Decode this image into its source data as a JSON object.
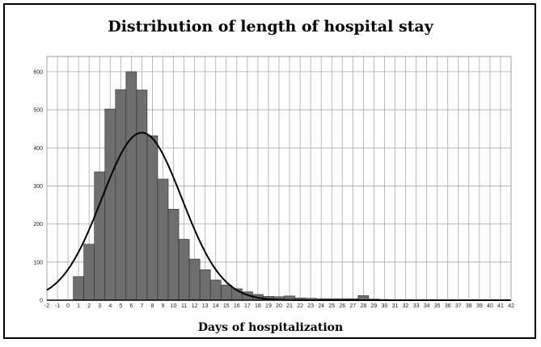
{
  "chart_data": {
    "type": "bar",
    "title": "Distribution of length of hospital stay",
    "xlabel": "Days of hospitalization",
    "ylabel": "",
    "xlim": [
      -2,
      42
    ],
    "ylim": [
      0,
      640
    ],
    "x_ticks": [
      -2,
      -1,
      0,
      1,
      2,
      3,
      4,
      5,
      6,
      7,
      8,
      9,
      10,
      11,
      12,
      13,
      14,
      15,
      16,
      17,
      18,
      19,
      20,
      21,
      22,
      23,
      24,
      25,
      26,
      27,
      28,
      29,
      30,
      31,
      32,
      33,
      34,
      35,
      36,
      37,
      38,
      39,
      40,
      41,
      42
    ],
    "y_ticks": [
      0,
      100,
      200,
      300,
      400,
      500,
      600
    ],
    "grid": true,
    "bar_color": "#6e6e6e",
    "series": [
      {
        "type": "bar",
        "x": [
          1,
          2,
          3,
          4,
          5,
          6,
          7,
          8,
          9,
          10,
          11,
          12,
          13,
          14,
          15,
          16,
          17,
          18,
          19,
          20,
          21,
          22,
          23,
          24,
          25,
          26,
          27,
          28,
          29,
          30
        ],
        "values": [
          62,
          147,
          337,
          502,
          553,
          600,
          552,
          432,
          318,
          239,
          160,
          108,
          80,
          53,
          40,
          30,
          22,
          15,
          10,
          9,
          11,
          6,
          5,
          4,
          4,
          4,
          4,
          12,
          3,
          2
        ]
      },
      {
        "type": "line",
        "label_shown": false,
        "normal_curve": {
          "mean": 7,
          "sd": 3.8,
          "peak": 440
        }
      }
    ]
  }
}
